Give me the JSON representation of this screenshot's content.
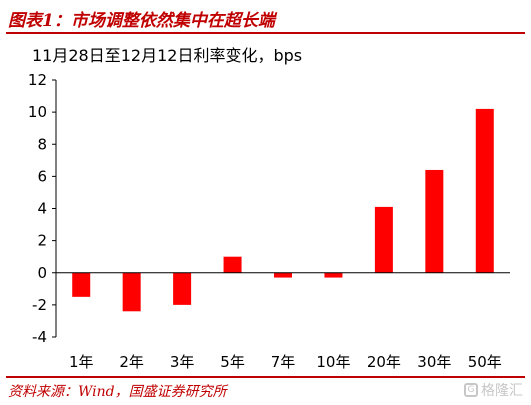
{
  "figure": {
    "title": "图表1：市场调整依然集中在超长端",
    "source": "资料来源：Wind，国盛证券研究所",
    "watermark": "格隆汇",
    "watermark_mark": "G"
  },
  "chart_data": {
    "type": "bar",
    "title": "11月28日至12月12日利率变化，bps",
    "categories": [
      "1年",
      "2年",
      "3年",
      "5年",
      "7年",
      "10年",
      "20年",
      "30年",
      "50年"
    ],
    "values": [
      -1.5,
      -2.4,
      -2.0,
      1.0,
      -0.3,
      -0.3,
      4.1,
      6.4,
      10.2
    ],
    "ylim": [
      -4,
      12
    ],
    "yticks": [
      -4,
      -2,
      0,
      2,
      4,
      6,
      8,
      10,
      12
    ],
    "bar_color": "#ff0000",
    "grid": false,
    "xlabel": "",
    "ylabel": ""
  }
}
